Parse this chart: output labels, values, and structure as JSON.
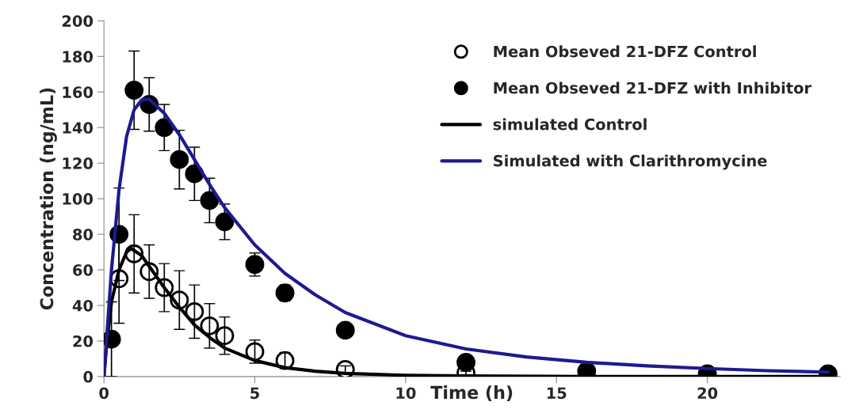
{
  "chart_data": {
    "type": "scatter",
    "xlabel": "Time (h)",
    "ylabel": "Concentration (ng/mL)",
    "xlim": [
      0,
      24.4
    ],
    "xticks": [
      0,
      5,
      10,
      15,
      20
    ],
    "ylim": [
      0,
      200
    ],
    "yticks": [
      0,
      20,
      40,
      60,
      80,
      100,
      120,
      140,
      160,
      180,
      200
    ],
    "grid": false,
    "legend": "top right",
    "marker": "circle",
    "series": [
      {
        "name": "Mean Obseved 21-DFZ Control",
        "color": "#ffffff",
        "x": [
          0.5,
          1,
          1.5,
          2,
          2.5,
          3,
          3.5,
          4,
          5,
          6,
          8,
          12
        ],
        "values": [
          55,
          69,
          59,
          50,
          43,
          36.5,
          28.5,
          23,
          14,
          9,
          4,
          2
        ],
        "errors": [
          25,
          22,
          15,
          13.5,
          16.5,
          15,
          12.5,
          10.5,
          6.5,
          4.5,
          2,
          1
        ]
      },
      {
        "name": "Mean Obseved 21-DFZ with Inhibitor",
        "color": "#000000",
        "x": [
          0.25,
          0.5,
          1,
          1.5,
          2,
          2.5,
          3,
          3.5,
          4,
          5,
          6,
          8,
          12,
          16,
          20,
          24
        ],
        "values": [
          21,
          80,
          161,
          153,
          140,
          122,
          114,
          99,
          87,
          63,
          47,
          26,
          8,
          3,
          1.5,
          1.5
        ],
        "errors": [
          21,
          26,
          22,
          15,
          13,
          16.5,
          15,
          12.5,
          10,
          6.5,
          4.5,
          null,
          null,
          null,
          null,
          null
        ]
      },
      {
        "name": "simulated Control",
        "type": "line",
        "color": "#000000",
        "marker": "none",
        "x": [
          0,
          0.1,
          0.25,
          0.5,
          0.75,
          0.9,
          1.25,
          1.5,
          2,
          2.5,
          3,
          3.5,
          4,
          5,
          6,
          7,
          8,
          10,
          12,
          16,
          24
        ],
        "values": [
          0,
          20,
          42,
          60,
          70,
          72,
          68,
          62,
          50,
          39,
          29,
          22,
          16,
          9,
          5,
          3,
          1.8,
          0.7,
          0.3,
          0,
          0
        ]
      },
      {
        "name": "Simulated with Clarithromycine",
        "type": "line",
        "color": "#1f1a8f",
        "marker": "none",
        "x": [
          0,
          0.25,
          0.5,
          0.75,
          1,
          1.25,
          1.5,
          2,
          2.5,
          3,
          3.5,
          4,
          5,
          6,
          7,
          8,
          10,
          12,
          14,
          16,
          18,
          20,
          22,
          24
        ],
        "values": [
          0,
          60,
          105,
          135,
          150,
          155.5,
          156,
          148,
          136,
          122,
          108,
          95,
          74,
          58,
          46,
          36,
          23,
          15.5,
          11,
          8,
          6,
          4.5,
          3.3,
          2.5
        ]
      }
    ]
  }
}
